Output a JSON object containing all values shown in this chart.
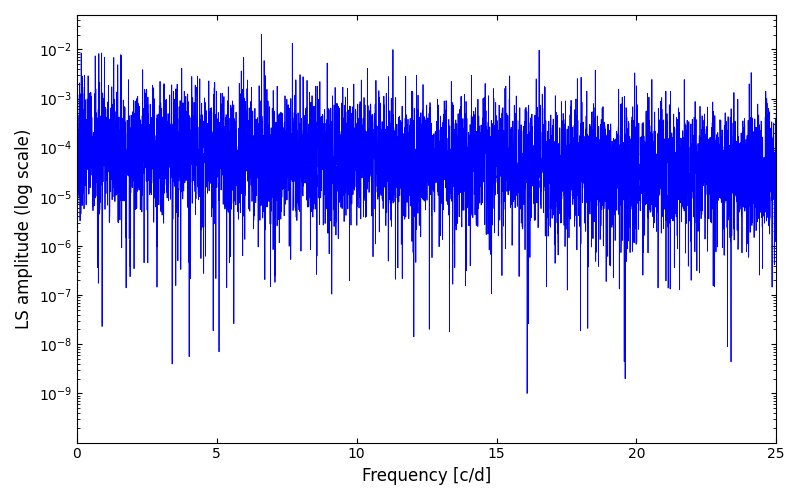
{
  "title": "",
  "xlabel": "Frequency [c/d]",
  "ylabel": "LS amplitude (log scale)",
  "line_color": "#0000ff",
  "line_width": 0.6,
  "xlim": [
    0,
    25
  ],
  "ylim": [
    1e-10,
    0.05
  ],
  "yticks": [
    1e-09,
    1e-08,
    1e-07,
    1e-06,
    1e-05,
    0.0001,
    0.001,
    0.01
  ],
  "xticks": [
    0,
    5,
    10,
    15,
    20,
    25
  ],
  "freq_max": 25.0,
  "n_points": 6000,
  "seed": 7,
  "background_color": "#ffffff",
  "figsize": [
    8.0,
    5.0
  ],
  "dpi": 100
}
